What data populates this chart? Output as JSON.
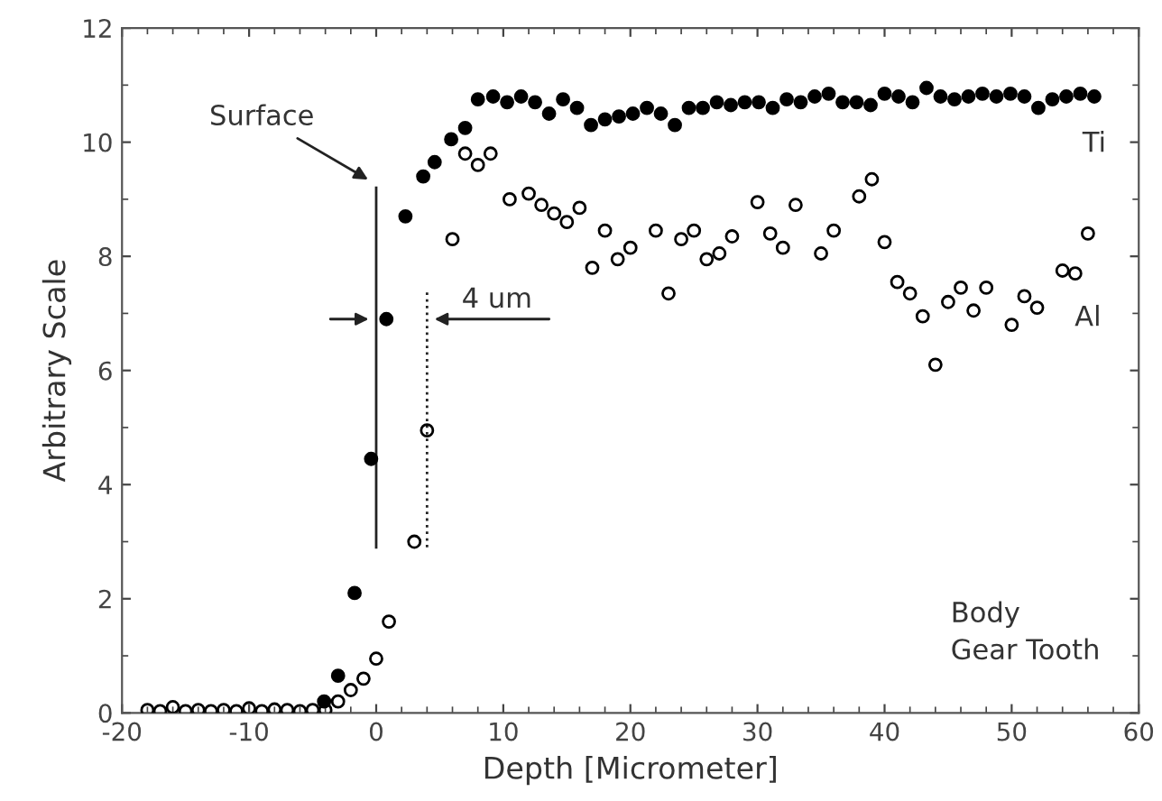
{
  "chart_data": {
    "type": "scatter",
    "xlabel": "Depth [Micrometer]",
    "ylabel": "Arbitrary Scale",
    "xlim": [
      -20,
      60
    ],
    "xticks": [
      -20,
      -10,
      0,
      10,
      20,
      30,
      40,
      50,
      60
    ],
    "ylim": [
      0,
      12
    ],
    "yticks": [
      0,
      2,
      4,
      6,
      8,
      10,
      12
    ],
    "grid": false,
    "legend": false,
    "marker": "circle",
    "series": [
      {
        "name": "Ti",
        "color": "#000000",
        "x": [
          -4.1,
          -3,
          -1.7,
          -0.4,
          0.8,
          2.3,
          3.7,
          4.6,
          5.9,
          7,
          8,
          9.2,
          10.3,
          11.4,
          12.5,
          13.6,
          14.7,
          15.8,
          16.9,
          18,
          19.1,
          20.2,
          21.3,
          22.4,
          23.5,
          24.6,
          25.7,
          26.8,
          27.9,
          29,
          30.1,
          31.2,
          32.3,
          33.4,
          34.5,
          35.6,
          36.7,
          37.8,
          38.9,
          40,
          41.1,
          42.2,
          43.3,
          44.4,
          45.5,
          46.6,
          47.7,
          48.8,
          49.9,
          51,
          52.1,
          53.2,
          54.3,
          55.4,
          56.5
        ],
        "values": [
          0.2,
          0.65,
          2.1,
          4.45,
          6.9,
          8.7,
          9.4,
          9.65,
          10.05,
          10.25,
          10.75,
          10.8,
          10.7,
          10.8,
          10.7,
          10.5,
          10.75,
          10.6,
          10.3,
          10.4,
          10.45,
          10.5,
          10.6,
          10.5,
          10.3,
          10.6,
          10.6,
          10.7,
          10.65,
          10.7,
          10.7,
          10.6,
          10.75,
          10.7,
          10.8,
          10.85,
          10.7,
          10.7,
          10.65,
          10.85,
          10.8,
          10.7,
          10.95,
          10.8,
          10.75,
          10.8,
          10.85,
          10.8,
          10.85,
          10.8,
          10.6,
          10.75,
          10.8,
          10.85,
          10.8
        ]
      },
      {
        "name": "Al",
        "color": "#000000",
        "x": [
          -18,
          -17,
          -16,
          -15,
          -14,
          -13,
          -12,
          -11,
          -10,
          -9,
          -8,
          -7,
          -6,
          -5,
          -4,
          -3,
          -2,
          -1,
          0,
          1,
          3,
          4,
          6,
          7,
          8,
          9,
          10.5,
          12,
          13,
          14,
          15,
          16,
          17,
          18,
          19,
          20,
          22,
          23,
          24,
          25,
          26,
          27,
          28,
          30,
          31,
          32,
          33,
          35,
          36,
          38,
          39,
          40,
          41,
          42,
          43,
          44,
          45,
          46,
          47,
          48,
          50,
          51,
          52,
          54,
          55,
          56
        ],
        "values": [
          0.05,
          0.03,
          0.1,
          0.03,
          0.05,
          0.03,
          0.05,
          0.03,
          0.08,
          0.03,
          0.06,
          0.05,
          0.03,
          0.05,
          0.05,
          0.2,
          0.4,
          0.6,
          0.95,
          1.6,
          3.0,
          4.95,
          8.3,
          9.8,
          9.6,
          9.8,
          9.0,
          9.1,
          8.9,
          8.75,
          8.6,
          8.85,
          7.8,
          8.45,
          7.95,
          8.15,
          8.45,
          7.35,
          8.3,
          8.45,
          7.95,
          8.05,
          8.35,
          8.95,
          8.4,
          8.15,
          8.9,
          8.05,
          8.45,
          9.05,
          9.35,
          8.25,
          7.55,
          7.35,
          6.95,
          6.1,
          7.2,
          7.45,
          7.05,
          7.45,
          6.8,
          7.3,
          7.1,
          7.75,
          7.7,
          8.4
        ]
      }
    ],
    "ref_lines": [
      {
        "axis": "x",
        "value": 0,
        "line_style": "solid",
        "label": "Surface"
      },
      {
        "axis": "x",
        "value": 4,
        "line_style": "dotted"
      }
    ],
    "annotations": [
      {
        "text": "4 um",
        "x": 4,
        "y": 6.9
      },
      "Body\nGear Tooth"
    ]
  }
}
